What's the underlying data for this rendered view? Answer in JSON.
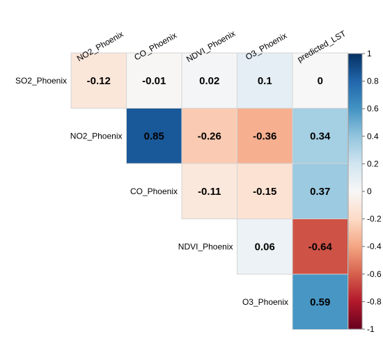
{
  "chart_data": {
    "type": "heatmap",
    "title": "",
    "column_labels": [
      "NO2_Phoenix",
      "CO_Phoenix",
      "NDVI_Phoenix",
      "O3_Phoenix",
      "predicted_LST"
    ],
    "row_labels": [
      "SO2_Phoenix",
      "NO2_Phoenix",
      "CO_Phoenix",
      "NDVI_Phoenix",
      "O3_Phoenix"
    ],
    "values": [
      [
        -0.12,
        -0.01,
        0.02,
        0.1,
        0
      ],
      [
        null,
        0.85,
        -0.26,
        -0.36,
        0.34
      ],
      [
        null,
        null,
        -0.11,
        -0.15,
        0.37
      ],
      [
        null,
        null,
        null,
        0.06,
        -0.64
      ],
      [
        null,
        null,
        null,
        null,
        0.59
      ]
    ],
    "value_labels": [
      [
        "-0.12",
        "-0.01",
        "0.02",
        "0.1",
        "0"
      ],
      [
        null,
        "0.85",
        "-0.26",
        "-0.36",
        "0.34"
      ],
      [
        null,
        null,
        "-0.11",
        "-0.15",
        "0.37"
      ],
      [
        null,
        null,
        null,
        "0.06",
        "-0.64"
      ],
      [
        null,
        null,
        null,
        null,
        "0.59"
      ]
    ],
    "layout": "upper-triangle",
    "color_scale": {
      "range": [
        -1,
        1
      ],
      "low_color": "#67001f",
      "mid_color": "#f7f7f7",
      "high_color": "#053061",
      "ticks": [
        "1",
        "0.8",
        "0.6",
        "0.4",
        "0.2",
        "0",
        "-0.2",
        "-0.4",
        "-0.6",
        "-0.8",
        "-1"
      ]
    },
    "legend_placement": "right"
  }
}
